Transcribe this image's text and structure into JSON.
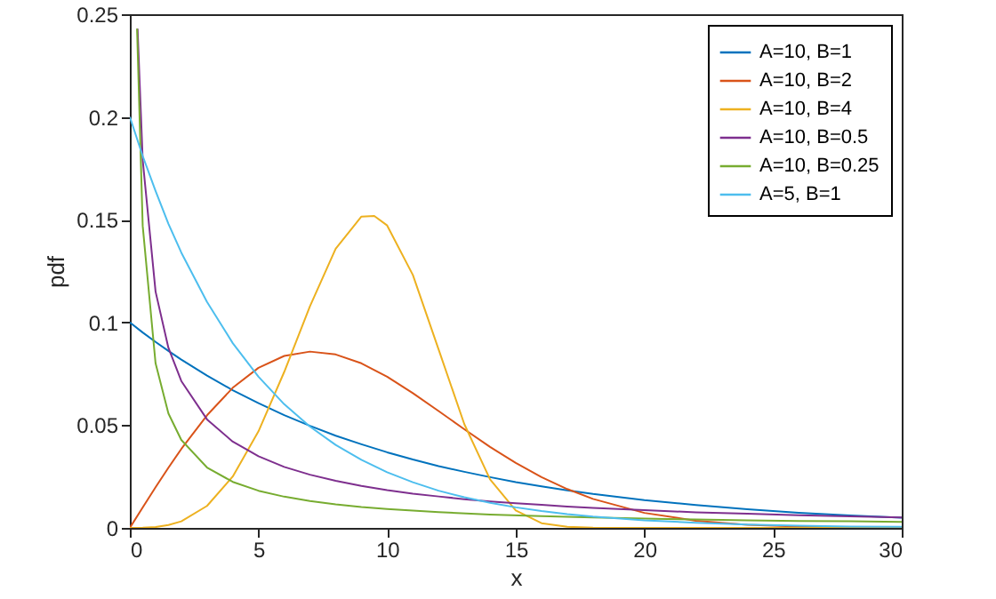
{
  "chart_data": {
    "type": "line",
    "xlabel": "x",
    "ylabel": "pdf",
    "xlim": [
      0,
      30
    ],
    "ylim": [
      0,
      0.25
    ],
    "xticks": [
      0,
      5,
      10,
      15,
      20,
      25,
      30
    ],
    "yticks": [
      0,
      0.05,
      0.1,
      0.15,
      0.2,
      0.25
    ],
    "legend": "top right",
    "series": [
      {
        "name": "A=10, B=1",
        "color": "#0072bd",
        "x": [
          0,
          0.5,
          1,
          1.5,
          2,
          3,
          4,
          5,
          6,
          7,
          8,
          9,
          10,
          11,
          12,
          13,
          14,
          15,
          16,
          17,
          18,
          20,
          22,
          24,
          26,
          28,
          30
        ],
        "values": [
          0.1,
          0.0951,
          0.0905,
          0.0861,
          0.0819,
          0.0741,
          0.067,
          0.0607,
          0.0549,
          0.0497,
          0.0449,
          0.0407,
          0.0368,
          0.0333,
          0.0301,
          0.0273,
          0.0247,
          0.0223,
          0.0202,
          0.0183,
          0.0165,
          0.0135,
          0.0111,
          0.0091,
          0.0074,
          0.0061,
          0.005
        ]
      },
      {
        "name": "A=10, B=2",
        "color": "#d95319",
        "x": [
          0,
          0.5,
          1,
          1.5,
          2,
          3,
          4,
          5,
          6,
          7,
          8,
          9,
          10,
          11,
          12,
          13,
          14,
          15,
          16,
          17,
          18,
          20,
          22,
          24,
          26,
          28,
          30
        ],
        "values": [
          0,
          0.00998,
          0.0198,
          0.0293,
          0.0384,
          0.0548,
          0.0682,
          0.0779,
          0.0837,
          0.0858,
          0.0844,
          0.0801,
          0.0736,
          0.0656,
          0.0569,
          0.048,
          0.0394,
          0.0316,
          0.0247,
          0.0189,
          0.0141,
          0.0073,
          0.0035,
          0.0015,
          0.0006,
          0.0002,
          0
        ]
      },
      {
        "name": "A=10, B=4",
        "color": "#edb120",
        "x": [
          0,
          0.5,
          1,
          1.5,
          2,
          3,
          4,
          5,
          6,
          7,
          8,
          9,
          9.5,
          10,
          11,
          12,
          13,
          14,
          15,
          16,
          17,
          18,
          20,
          22,
          24,
          26,
          28,
          30
        ],
        "values": [
          0,
          0.0001,
          0.0004,
          0.0014,
          0.0032,
          0.0107,
          0.025,
          0.047,
          0.0759,
          0.1079,
          0.1359,
          0.1515,
          0.1518,
          0.1472,
          0.1231,
          0.0869,
          0.0505,
          0.0236,
          0.0085,
          0.0023,
          0.0005,
          0.0001,
          0,
          0,
          0,
          0,
          0,
          0
        ]
      },
      {
        "name": "A=10, B=0.5",
        "color": "#7e2f8e",
        "x": [
          0.3,
          0.5,
          1,
          1.5,
          2,
          3,
          4,
          5,
          6,
          7,
          8,
          9,
          10,
          11,
          12,
          13,
          14,
          15,
          16,
          17,
          18,
          20,
          22,
          24,
          26,
          28,
          30
        ],
        "values": [
          0.243,
          0.179,
          0.115,
          0.0876,
          0.0715,
          0.0528,
          0.042,
          0.0349,
          0.0297,
          0.0259,
          0.0229,
          0.0204,
          0.0184,
          0.0167,
          0.0153,
          0.014,
          0.0129,
          0.012,
          0.0112,
          0.0104,
          0.0097,
          0.0086,
          0.0076,
          0.0069,
          0.0062,
          0.0056,
          0.0051
        ]
      },
      {
        "name": "A=10, B=0.25",
        "color": "#77ac30",
        "x": [
          0.28,
          0.5,
          1,
          1.5,
          2,
          3,
          4,
          5,
          6,
          7,
          8,
          9,
          10,
          12,
          14,
          16,
          18,
          20,
          22,
          24,
          26,
          28,
          30
        ],
        "values": [
          0.243,
          0.147,
          0.0801,
          0.0557,
          0.0428,
          0.0294,
          0.0224,
          0.0181,
          0.0152,
          0.0131,
          0.0115,
          0.0102,
          0.0092,
          0.0077,
          0.0065,
          0.0057,
          0.0051,
          0.0045,
          0.0041,
          0.0037,
          0.0034,
          0.0032,
          0.0029
        ]
      },
      {
        "name": "A=5, B=1",
        "color": "#4dbeee",
        "x": [
          0,
          0.5,
          1,
          1.5,
          2,
          3,
          4,
          5,
          6,
          7,
          8,
          9,
          10,
          11,
          12,
          13,
          14,
          15,
          16,
          17,
          18,
          20,
          22,
          24,
          26,
          28,
          30
        ],
        "values": [
          0.2,
          0.181,
          0.164,
          0.148,
          0.134,
          0.11,
          0.0899,
          0.0736,
          0.0602,
          0.0493,
          0.0404,
          0.0331,
          0.0271,
          0.0222,
          0.0181,
          0.0149,
          0.0122,
          0.01,
          0.0082,
          0.0067,
          0.0055,
          0.0037,
          0.0025,
          0.0016,
          0.0011,
          0.0007,
          0.0005
        ]
      }
    ]
  }
}
